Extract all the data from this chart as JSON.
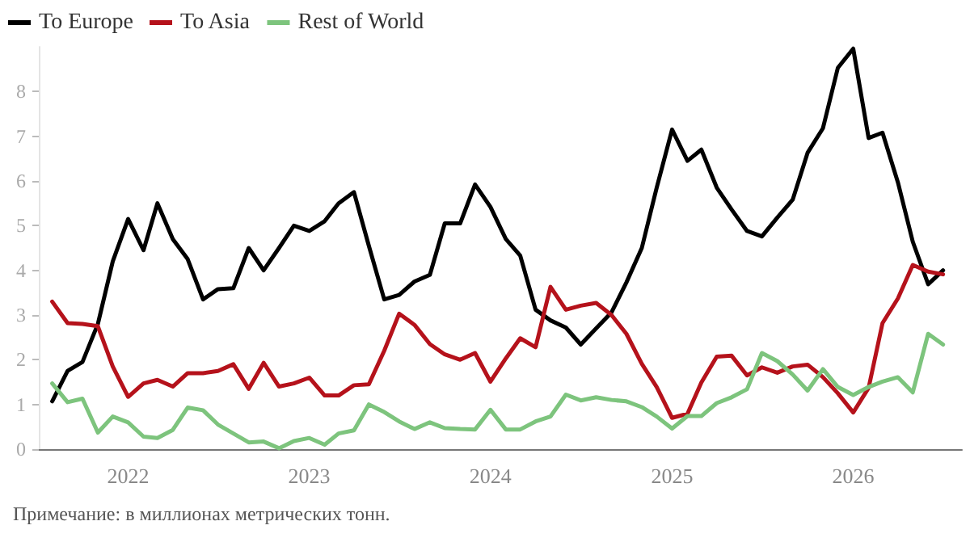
{
  "chart_data": {
    "type": "line",
    "x": [
      "2021-08",
      "2021-09",
      "2021-10",
      "2021-11",
      "2021-12",
      "2022-01",
      "2022-02",
      "2022-03",
      "2022-04",
      "2022-05",
      "2022-06",
      "2022-07",
      "2022-08",
      "2022-09",
      "2022-10",
      "2022-11",
      "2022-12",
      "2023-01",
      "2023-02",
      "2023-03",
      "2023-04",
      "2023-05",
      "2023-06",
      "2023-07",
      "2023-08",
      "2023-09",
      "2023-10",
      "2023-11",
      "2023-12",
      "2024-01",
      "2024-02",
      "2024-03",
      "2024-04",
      "2024-05",
      "2024-06",
      "2024-07",
      "2024-08",
      "2024-09",
      "2024-10",
      "2024-11",
      "2024-12",
      "2025-01",
      "2025-02",
      "2025-03",
      "2025-04",
      "2025-05",
      "2025-06",
      "2025-07",
      "2025-08",
      "2025-09",
      "2025-10",
      "2025-11",
      "2025-12",
      "2026-01",
      "2026-02",
      "2026-03",
      "2026-04",
      "2026-05",
      "2026-06",
      "2026-07"
    ],
    "series": [
      {
        "name": "To Europe",
        "color": "#000000",
        "values": [
          1.07,
          1.75,
          1.95,
          2.8,
          4.2,
          5.15,
          4.45,
          5.5,
          4.7,
          4.25,
          3.35,
          3.58,
          3.6,
          4.5,
          4.0,
          4.5,
          5.0,
          4.88,
          5.1,
          5.5,
          5.75,
          4.55,
          3.35,
          3.45,
          3.75,
          3.9,
          5.05,
          5.05,
          5.92,
          5.42,
          4.7,
          4.33,
          3.12,
          2.88,
          2.72,
          2.34,
          2.7,
          3.06,
          3.73,
          4.5,
          5.85,
          7.15,
          6.45,
          6.7,
          5.85,
          5.36,
          4.88,
          4.76,
          5.18,
          5.58,
          6.63,
          7.18,
          8.53,
          8.96,
          6.96,
          7.08,
          5.97,
          4.64,
          3.69,
          4.0
        ]
      },
      {
        "name": "To Asia",
        "color": "#b5121b",
        "values": [
          3.3,
          2.82,
          2.8,
          2.75,
          1.85,
          1.17,
          1.47,
          1.55,
          1.4,
          1.7,
          1.7,
          1.75,
          1.9,
          1.35,
          1.93,
          1.4,
          1.47,
          1.6,
          1.2,
          1.2,
          1.43,
          1.45,
          2.2,
          3.03,
          2.78,
          2.35,
          2.12,
          2.0,
          2.15,
          1.51,
          2.03,
          2.48,
          2.28,
          3.63,
          3.12,
          3.21,
          3.27,
          3.0,
          2.58,
          1.91,
          1.39,
          0.7,
          0.79,
          1.49,
          2.07,
          2.09,
          1.65,
          1.83,
          1.71,
          1.85,
          1.89,
          1.61,
          1.25,
          0.82,
          1.37,
          2.82,
          3.37,
          4.12,
          3.97,
          3.91
        ]
      },
      {
        "name": "Rest of World",
        "color": "#7dc47d",
        "values": [
          1.47,
          1.05,
          1.13,
          0.37,
          0.73,
          0.6,
          0.28,
          0.25,
          0.43,
          0.93,
          0.87,
          0.55,
          0.35,
          0.15,
          0.17,
          0.02,
          0.18,
          0.25,
          0.1,
          0.35,
          0.42,
          1.0,
          0.83,
          0.62,
          0.45,
          0.6,
          0.47,
          0.45,
          0.44,
          0.88,
          0.44,
          0.44,
          0.62,
          0.73,
          1.22,
          1.09,
          1.16,
          1.1,
          1.07,
          0.94,
          0.73,
          0.46,
          0.74,
          0.74,
          1.03,
          1.16,
          1.34,
          2.15,
          1.97,
          1.67,
          1.31,
          1.79,
          1.39,
          1.21,
          1.39,
          1.51,
          1.61,
          1.27,
          2.58,
          2.34
        ]
      }
    ],
    "xlim": [
      "2021-07-05",
      "2026-08-08"
    ],
    "xticks": [
      "2022",
      "2023",
      "2024",
      "2025",
      "2026"
    ],
    "ylim": [
      0,
      9
    ],
    "yticks": [
      0,
      1,
      2,
      3,
      4,
      5,
      6,
      7,
      8
    ],
    "legend": "top left",
    "grid": false,
    "marker": "none",
    "line_style": "solid",
    "annotations": [
      "Примечание: в миллионах метрических тонн."
    ]
  }
}
